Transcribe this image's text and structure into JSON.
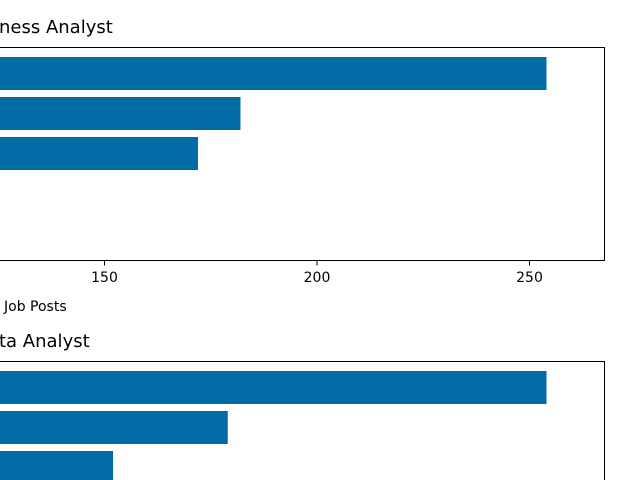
{
  "chart_data": [
    {
      "type": "bar",
      "orientation": "horizontal",
      "title": "ness Analyst",
      "xlabel": "Job Posts",
      "x_ticks": [
        150,
        200,
        250
      ],
      "xlim": [
        127,
        267
      ],
      "values": [
        254,
        182,
        172
      ],
      "bar_color": "#006BA4",
      "grid": false
    },
    {
      "type": "bar",
      "orientation": "horizontal",
      "title": "ta Analyst",
      "xlim": [
        127,
        267
      ],
      "values": [
        254,
        179,
        152
      ],
      "bar_color": "#006BA4",
      "grid": false
    }
  ]
}
